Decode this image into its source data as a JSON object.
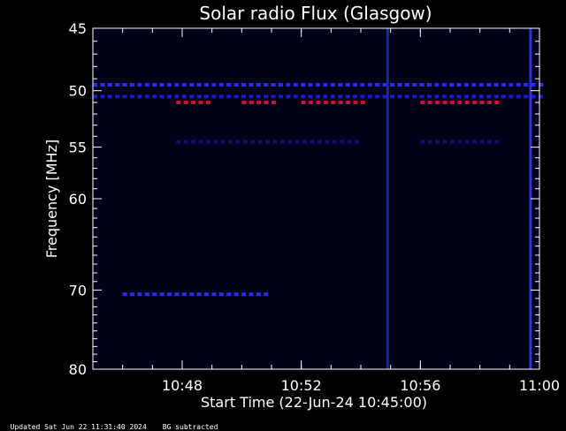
{
  "chart_data": {
    "type": "heatmap",
    "title": "Solar radio Flux (Glasgow)",
    "xlabel": "Start Time (22-Jun-24 10:45:00)",
    "ylabel": "Frequency [MHz]",
    "x_range": [
      "10:45",
      "11:00"
    ],
    "y_range_mhz": [
      45,
      80
    ],
    "y_scale": "log",
    "x_ticks": [
      "10:48",
      "10:52",
      "10:56",
      "11:00"
    ],
    "y_ticks": [
      45,
      50,
      55,
      60,
      70,
      80
    ],
    "features": [
      {
        "kind": "dotted_band",
        "freq_mhz": 49.5,
        "start": "10:45",
        "end": "11:00",
        "color": "#2a2aff"
      },
      {
        "kind": "dotted_band",
        "freq_mhz": 50.5,
        "start": "10:45",
        "end": "11:00",
        "color": "#1a1acc"
      },
      {
        "kind": "dotted_band",
        "freq_mhz": 51.0,
        "start": "10:47.8",
        "end": "10:49.0",
        "color": "#cc1133"
      },
      {
        "kind": "dotted_band",
        "freq_mhz": 51.0,
        "start": "10:50.0",
        "end": "10:51.0",
        "color": "#cc1133"
      },
      {
        "kind": "dotted_band",
        "freq_mhz": 51.0,
        "start": "10:52.0",
        "end": "10:54.0",
        "color": "#cc1133"
      },
      {
        "kind": "dotted_band",
        "freq_mhz": 51.0,
        "start": "10:56.0",
        "end": "10:58.5",
        "color": "#cc1133"
      },
      {
        "kind": "dotted_band",
        "freq_mhz": 54.5,
        "start": "10:47.8",
        "end": "10:54.0",
        "color": "#101070"
      },
      {
        "kind": "dotted_band",
        "freq_mhz": 54.5,
        "start": "10:56.0",
        "end": "10:58.5",
        "color": "#101070"
      },
      {
        "kind": "dotted_band",
        "freq_mhz": 70.5,
        "start": "10:46.0",
        "end": "10:50.8",
        "color": "#2a2aff"
      },
      {
        "kind": "vertical_streak",
        "time": "10:54.9",
        "freq_low": 45,
        "freq_high": 80,
        "color": "#2233aa"
      },
      {
        "kind": "vertical_streak",
        "time": "10:59.7",
        "freq_low": 45,
        "freq_high": 80,
        "color": "#3a3aff"
      }
    ]
  },
  "footer": {
    "updated": "Updated Sat Jun 22 11:31:40 2024",
    "note": "BG subtracted"
  },
  "colors": {
    "background": "#000000",
    "plot_bg": "#000018",
    "axis": "#ffffff"
  }
}
